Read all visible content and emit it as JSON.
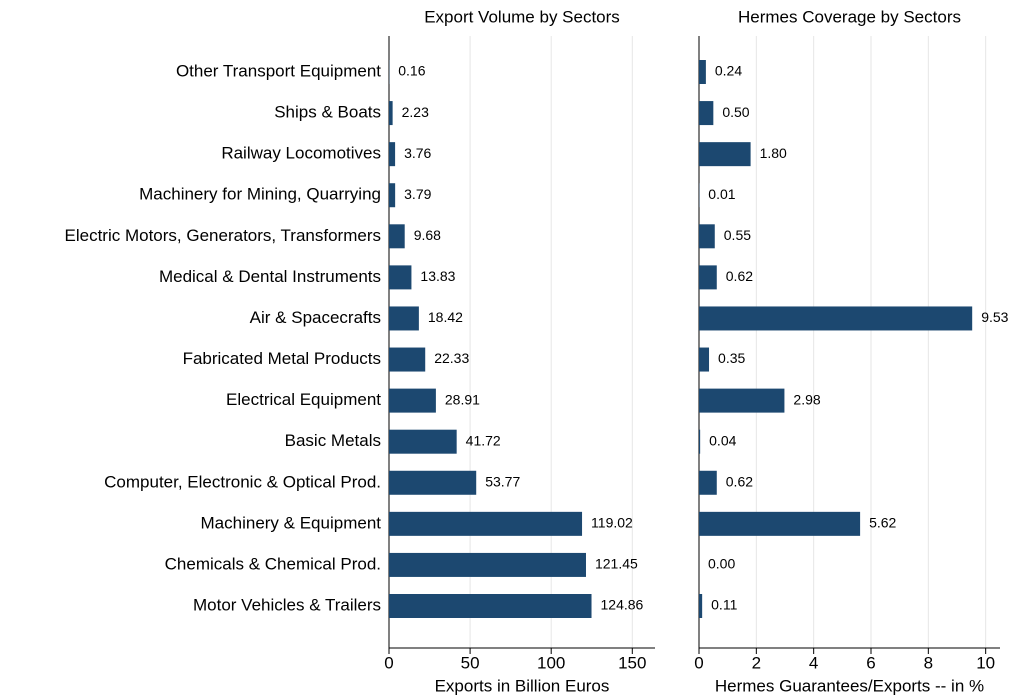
{
  "chart_data": [
    {
      "type": "barh",
      "title": "Export Volume by Sectors",
      "xlabel": "Exports in Billion Euros",
      "categories": [
        "Other Transport Equipment",
        "Ships & Boats",
        "Railway Locomotives",
        "Machinery for Mining, Quarrying",
        "Electric Motors, Generators, Transformers",
        "Medical & Dental Instruments",
        "Air & Spacecrafts",
        "Fabricated Metal Products",
        "Electrical Equipment",
        "Basic Metals",
        "Computer, Electronic & Optical Prod.",
        "Machinery & Equipment",
        "Chemicals & Chemical Prod.",
        "Motor Vehicles & Trailers"
      ],
      "values": [
        0.16,
        2.23,
        3.76,
        3.79,
        9.68,
        13.83,
        18.42,
        22.33,
        28.91,
        41.72,
        53.77,
        119.02,
        121.45,
        124.86
      ],
      "value_labels": [
        "0.16",
        "2.23",
        "3.76",
        "3.79",
        "9.68",
        "13.83",
        "18.42",
        "22.33",
        "28.91",
        "41.72",
        "53.77",
        "119.02",
        "121.45",
        "124.86"
      ],
      "color": "#1c4870",
      "xlim": [
        0,
        164
      ],
      "xticks": [
        0,
        50,
        100,
        150
      ],
      "grid": true
    },
    {
      "type": "barh",
      "title": "Hermes Coverage by Sectors",
      "xlabel": "Hermes Guarantees/Exports -- in %",
      "values": [
        0.24,
        0.5,
        1.8,
        0.01,
        0.55,
        0.62,
        9.53,
        0.35,
        2.98,
        0.04,
        0.62,
        5.62,
        0.0,
        0.11
      ],
      "value_labels": [
        "0.24",
        "0.50",
        "1.80",
        "0.01",
        "0.55",
        "0.62",
        "9.53",
        "0.35",
        "2.98",
        "0.04",
        "0.62",
        "5.62",
        "0.00",
        "0.11"
      ],
      "color": "#1c4870",
      "xlim": [
        0,
        10.5
      ],
      "xticks": [
        0,
        2,
        4,
        6,
        8,
        10
      ],
      "grid": true
    }
  ]
}
